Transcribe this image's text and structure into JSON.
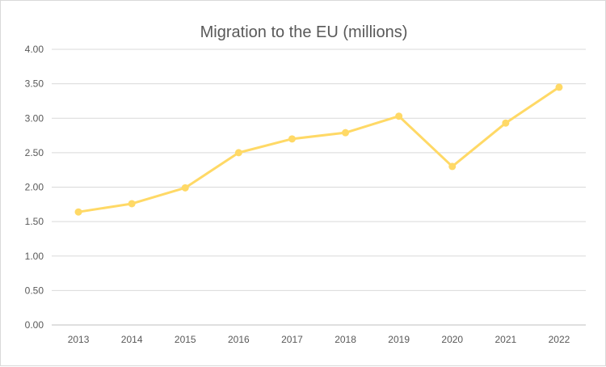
{
  "chart_data": {
    "type": "line",
    "title": "Migration to the EU (millions)",
    "xlabel": "",
    "ylabel": "",
    "categories": [
      "2013",
      "2014",
      "2015",
      "2016",
      "2017",
      "2018",
      "2019",
      "2020",
      "2021",
      "2022"
    ],
    "series": [
      {
        "name": "Migration to the EU (millions)",
        "values": [
          1.64,
          1.76,
          1.99,
          2.5,
          2.7,
          2.79,
          3.03,
          2.3,
          2.93,
          3.45
        ],
        "color": "#ffd966"
      }
    ],
    "ylim": [
      0,
      4
    ],
    "yticks": [
      "0.00",
      "0.50",
      "1.00",
      "1.50",
      "2.00",
      "2.50",
      "3.00",
      "3.50",
      "4.00"
    ],
    "ytick_values": [
      0,
      0.5,
      1,
      1.5,
      2,
      2.5,
      3,
      3.5,
      4
    ],
    "grid": true,
    "legend": "none",
    "colors": {
      "gridline": "#d9d9d9",
      "axis": "#bfbfbf",
      "text": "#595959"
    }
  }
}
